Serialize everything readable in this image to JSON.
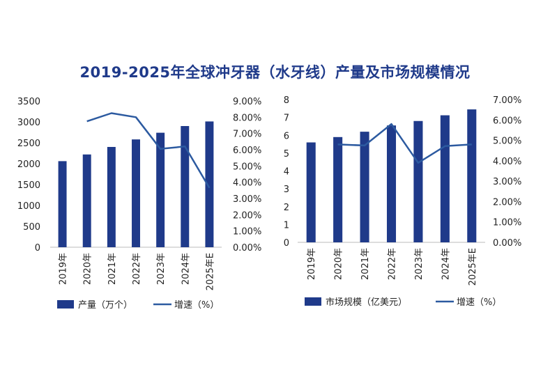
{
  "title": "2019-2025年全球冲牙器（水牙线）产量及市场规模情况",
  "colors": {
    "bar": "#1f3a8a",
    "line": "#2c5aa0",
    "title": "#1f3a8a"
  },
  "chart_data": [
    {
      "type": "bar",
      "categories": [
        "2019年",
        "2020年",
        "2021年",
        "2022年",
        "2023年",
        "2024年",
        "2025年E"
      ],
      "series": [
        {
          "name": "产量（万个）",
          "type": "bar",
          "axis": "left",
          "values": [
            2060,
            2220,
            2400,
            2580,
            2740,
            2900,
            3010
          ]
        },
        {
          "name": "增速（%）",
          "type": "line",
          "axis": "right",
          "values": [
            null,
            7.75,
            8.25,
            8.0,
            6.05,
            6.2,
            3.65
          ]
        }
      ],
      "yleft": {
        "ylim": [
          0,
          3500
        ],
        "ticks": [
          "0",
          "500",
          "1000",
          "1500",
          "2000",
          "2500",
          "3000",
          "3500"
        ]
      },
      "yright": {
        "ylim": [
          0,
          9
        ],
        "ticks": [
          "0.00%",
          "1.00%",
          "2.00%",
          "3.00%",
          "4.00%",
          "5.00%",
          "6.00%",
          "7.00%",
          "8.00%",
          "9.00%"
        ]
      },
      "legend": "bottom",
      "grid": false
    },
    {
      "type": "bar",
      "categories": [
        "2019年",
        "2020年",
        "2021年",
        "2022年",
        "2023年",
        "2024年",
        "2025年E"
      ],
      "series": [
        {
          "name": "市场规模（亿美元）",
          "type": "bar",
          "axis": "left",
          "values": [
            5.6,
            5.9,
            6.2,
            6.55,
            6.8,
            7.12,
            7.45
          ]
        },
        {
          "name": "增速（%）",
          "type": "line",
          "axis": "right",
          "values": [
            null,
            4.8,
            4.75,
            5.8,
            3.9,
            4.72,
            4.8
          ]
        }
      ],
      "yleft": {
        "ylim": [
          0,
          8
        ],
        "ticks": [
          "0",
          "1",
          "2",
          "3",
          "4",
          "5",
          "6",
          "7",
          "8"
        ]
      },
      "yright": {
        "ylim": [
          0,
          7
        ],
        "ticks": [
          "0.00%",
          "1.00%",
          "2.00%",
          "3.00%",
          "4.00%",
          "5.00%",
          "6.00%",
          "7.00%"
        ]
      },
      "legend": "bottom",
      "grid": false
    }
  ]
}
